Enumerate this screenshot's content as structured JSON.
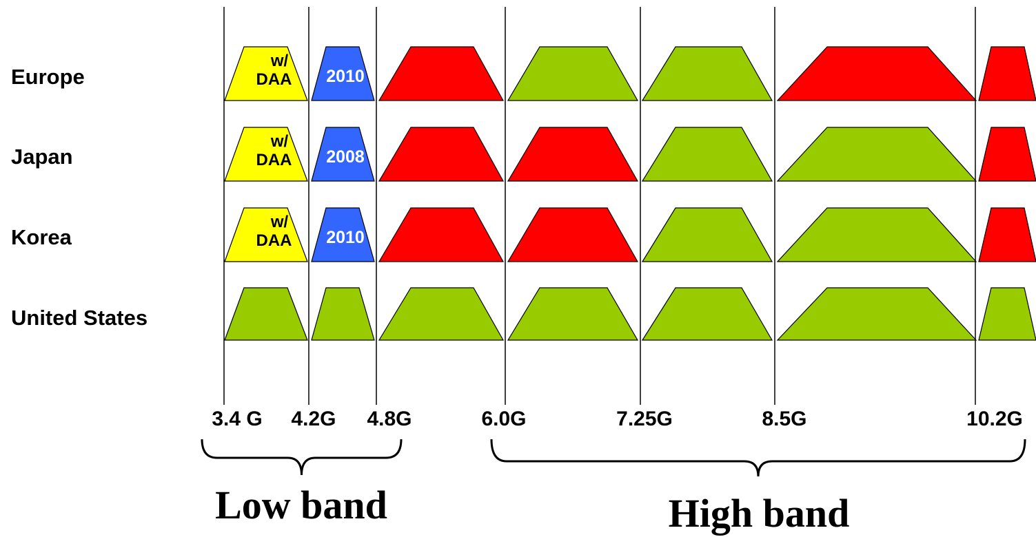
{
  "colors": {
    "green": "#99cc00",
    "red": "#ff0000",
    "yellow": "#ffff00",
    "blue": "#3366ff",
    "line": "#000000"
  },
  "regions": [
    "Europe",
    "Japan",
    "Korea",
    "United States"
  ],
  "frequency_ticks": [
    "3.4 G",
    "4.2G",
    "4.8G",
    "6.0G",
    "7.25G",
    "8.5G",
    "10.2G"
  ],
  "band_groups": {
    "low": "Low band",
    "high": "High band"
  },
  "rows": [
    {
      "region": "Europe",
      "blocks": [
        {
          "color": "yellow",
          "text": [
            "w/",
            "DAA"
          ],
          "text_color": "#000000"
        },
        {
          "color": "blue",
          "text": [
            "2010"
          ],
          "text_color": "#ffffff"
        },
        {
          "color": "red"
        },
        {
          "color": "green"
        },
        {
          "color": "green"
        },
        {
          "color": "red"
        },
        {
          "color": "red"
        }
      ]
    },
    {
      "region": "Japan",
      "blocks": [
        {
          "color": "yellow",
          "text": [
            "w/",
            "DAA"
          ],
          "text_color": "#000000"
        },
        {
          "color": "blue",
          "text": [
            "2008"
          ],
          "text_color": "#ffffff"
        },
        {
          "color": "red"
        },
        {
          "color": "red"
        },
        {
          "color": "green"
        },
        {
          "color": "green"
        },
        {
          "color": "red"
        }
      ]
    },
    {
      "region": "Korea",
      "blocks": [
        {
          "color": "yellow",
          "text": [
            "w/",
            "DAA"
          ],
          "text_color": "#000000"
        },
        {
          "color": "blue",
          "text": [
            "2010"
          ],
          "text_color": "#ffffff"
        },
        {
          "color": "red"
        },
        {
          "color": "red"
        },
        {
          "color": "green"
        },
        {
          "color": "green"
        },
        {
          "color": "red"
        }
      ]
    },
    {
      "region": "United States",
      "blocks": [
        {
          "color": "green"
        },
        {
          "color": "green"
        },
        {
          "color": "green"
        },
        {
          "color": "green"
        },
        {
          "color": "green"
        },
        {
          "color": "green"
        },
        {
          "color": "green"
        }
      ]
    }
  ]
}
